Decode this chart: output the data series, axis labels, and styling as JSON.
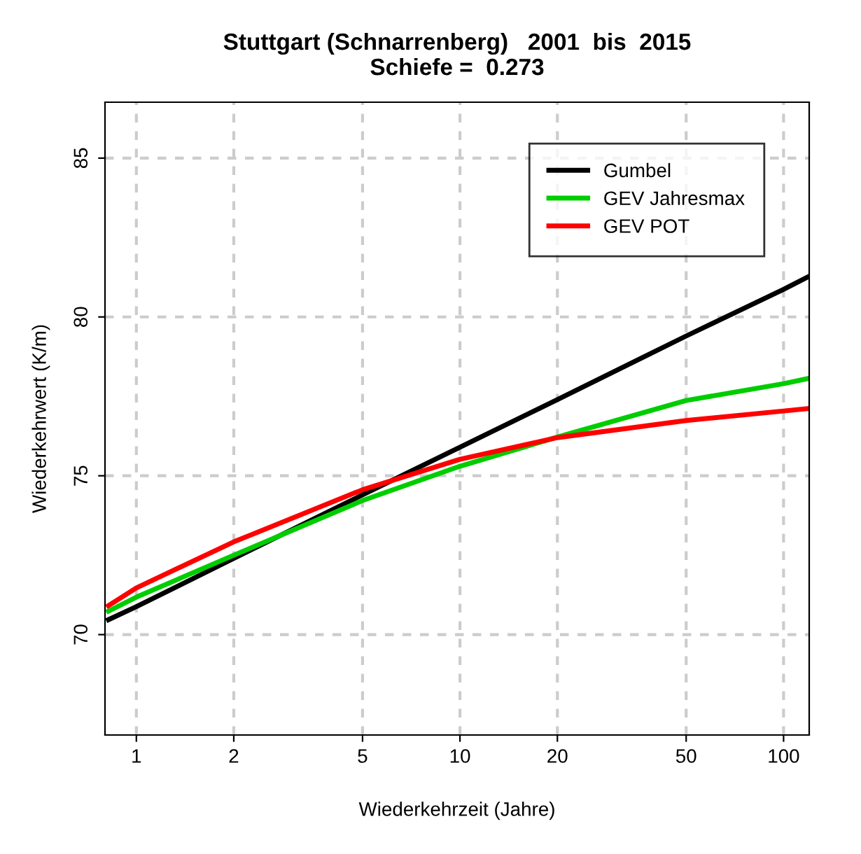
{
  "chart_data": {
    "type": "line",
    "title": "Stuttgart (Schnarrenberg)   2001  bis  2015\nSchiefe =  0.273",
    "xlabel": "Wiederkehrzeit (Jahre)",
    "ylabel": "Wiederkehrwert (K/m)",
    "x": [
      0.82,
      1,
      2,
      5,
      10,
      20,
      50,
      100,
      120
    ],
    "series": [
      {
        "name": "Gumbel",
        "color": "#000000",
        "values": [
          70.47,
          70.88,
          72.4,
          74.4,
          75.9,
          77.4,
          79.4,
          80.87,
          81.28
        ]
      },
      {
        "name": "GEV Jahresmax",
        "color": "#00cd00",
        "values": [
          70.74,
          71.18,
          72.5,
          74.22,
          75.3,
          76.22,
          77.37,
          77.9,
          78.07
        ]
      },
      {
        "name": "GEV POT",
        "color": "#ff0000",
        "values": [
          70.91,
          71.47,
          72.92,
          74.56,
          75.52,
          76.2,
          76.74,
          77.04,
          77.12
        ]
      }
    ],
    "log": "x",
    "xlim": [
      0.8,
      120
    ],
    "xticks": [
      1,
      2,
      5,
      10,
      20,
      50,
      100
    ],
    "ylim": [
      66.84,
      86.76
    ],
    "yticks": [
      70,
      75,
      80,
      85
    ],
    "grid": true,
    "legend": "top right",
    "line_style": "solid"
  }
}
